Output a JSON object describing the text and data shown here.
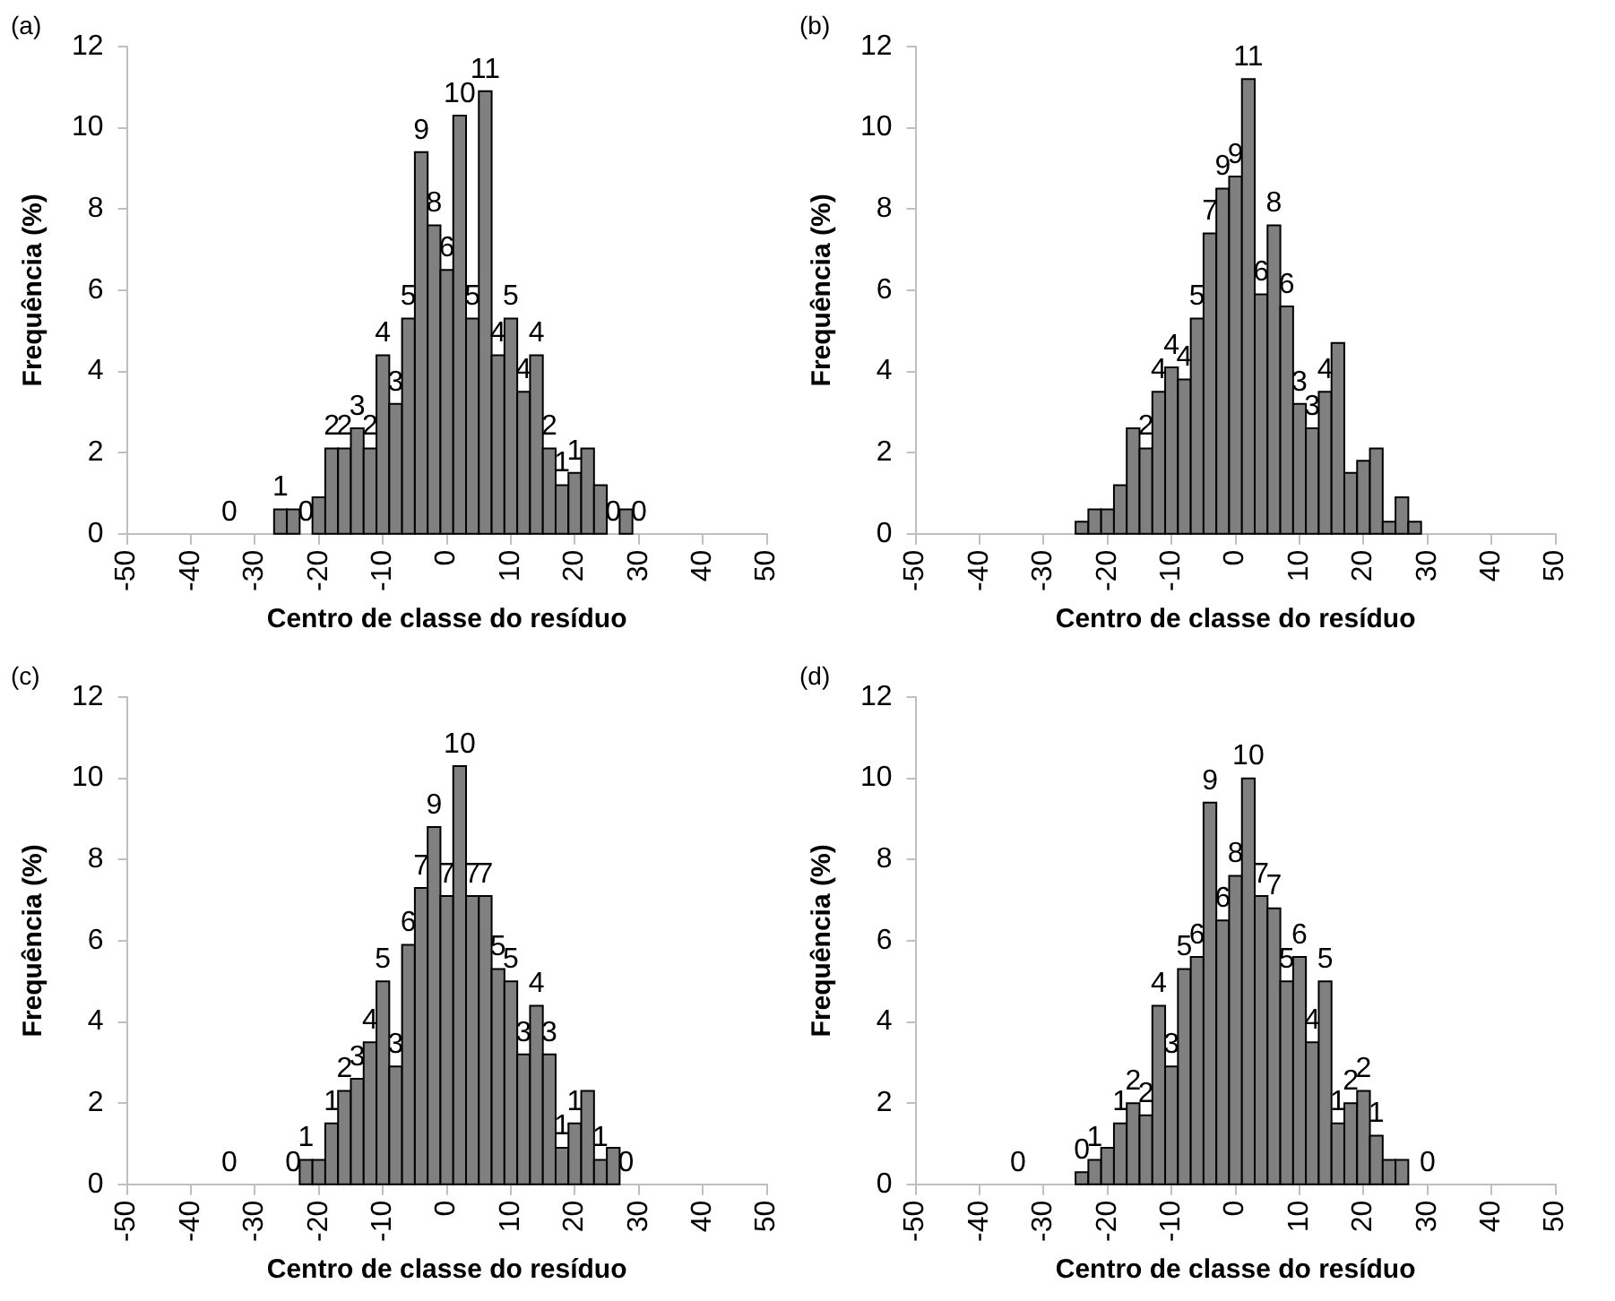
{
  "chart_data": [
    {
      "type": "histogram",
      "title": "(a)",
      "xlabel": "Centro de classe do resíduo",
      "ylabel": "Frequência (%)",
      "color": "#808080",
      "grid": false,
      "xlim": [
        -50,
        50
      ],
      "xticks": [
        -50,
        -40,
        -30,
        -20,
        -10,
        0,
        10,
        20,
        30,
        40,
        50
      ],
      "ylim": [
        0,
        12
      ],
      "yticks": [
        0,
        2,
        4,
        6,
        8,
        10,
        12
      ],
      "bins": [
        -35,
        -33,
        -31,
        -29,
        -27,
        -25,
        -23,
        -21,
        -19,
        -17,
        -15,
        -13,
        -11,
        -9,
        -7,
        -5,
        -3,
        -1,
        1,
        3,
        5,
        7,
        9,
        11,
        13,
        15,
        17,
        19,
        21,
        23,
        25,
        27,
        29,
        31
      ],
      "values": [
        0,
        0,
        0,
        0,
        0.6,
        0.6,
        0,
        0.9,
        2.1,
        2.1,
        2.6,
        2.1,
        4.4,
        3.2,
        5.3,
        9.4,
        7.6,
        6.5,
        10.3,
        5.3,
        10.9,
        4.4,
        5.3,
        3.5,
        4.4,
        2.1,
        1.2,
        1.5,
        2.1,
        1.2,
        0,
        0.6,
        0
      ],
      "value_labels": [
        "0",
        null,
        null,
        null,
        "1",
        null,
        "0",
        null,
        "2",
        "2",
        "3",
        "2",
        "4",
        "3",
        "5",
        "9",
        "8",
        "6",
        "10",
        "5",
        "11",
        "4",
        "5",
        "4",
        "4",
        "2",
        "1",
        "1",
        null,
        null,
        "0",
        null,
        "0"
      ]
    },
    {
      "type": "histogram",
      "title": "(b)",
      "xlabel": "Centro de classe do resíduo",
      "ylabel": "Frequência (%)",
      "color": "#808080",
      "grid": false,
      "xlim": [
        -50,
        50
      ],
      "xticks": [
        -50,
        -40,
        -30,
        -20,
        -10,
        0,
        10,
        20,
        30,
        40,
        50
      ],
      "ylim": [
        0,
        12
      ],
      "yticks": [
        0,
        2,
        4,
        6,
        8,
        10,
        12
      ],
      "bins": [
        -35,
        -33,
        -31,
        -29,
        -27,
        -25,
        -23,
        -21,
        -19,
        -17,
        -15,
        -13,
        -11,
        -9,
        -7,
        -5,
        -3,
        -1,
        1,
        3,
        5,
        7,
        9,
        11,
        13,
        15,
        17,
        19,
        21,
        23,
        25,
        27,
        29,
        31
      ],
      "values": [
        0,
        0,
        0,
        0,
        0,
        0.3,
        0.6,
        0.6,
        1.2,
        2.6,
        2.1,
        3.5,
        4.1,
        3.8,
        5.3,
        7.4,
        8.5,
        8.8,
        11.2,
        5.9,
        7.6,
        5.6,
        3.2,
        2.6,
        3.5,
        4.7,
        1.5,
        1.8,
        2.1,
        0.3,
        0.9,
        0.3,
        0
      ],
      "value_labels": [
        null,
        null,
        null,
        null,
        null,
        null,
        null,
        null,
        null,
        null,
        "2",
        "4",
        "4",
        "4",
        "5",
        "7",
        "9",
        "9",
        "11",
        "6",
        "8",
        "6",
        "3",
        "3",
        "4",
        null,
        null,
        null,
        null,
        null,
        null,
        null,
        null
      ]
    },
    {
      "type": "histogram",
      "title": "(c)",
      "xlabel": "Centro de classe do resíduo",
      "ylabel": "Frequência (%)",
      "color": "#808080",
      "grid": false,
      "xlim": [
        -50,
        50
      ],
      "xticks": [
        -50,
        -40,
        -30,
        -20,
        -10,
        0,
        10,
        20,
        30,
        40,
        50
      ],
      "ylim": [
        0,
        12
      ],
      "yticks": [
        0,
        2,
        4,
        6,
        8,
        10,
        12
      ],
      "bins": [
        -35,
        -33,
        -31,
        -29,
        -27,
        -25,
        -23,
        -21,
        -19,
        -17,
        -15,
        -13,
        -11,
        -9,
        -7,
        -5,
        -3,
        -1,
        1,
        3,
        5,
        7,
        9,
        11,
        13,
        15,
        17,
        19,
        21,
        23,
        25,
        27,
        29,
        31
      ],
      "values": [
        0,
        0,
        0,
        0,
        0,
        0,
        0.6,
        0.6,
        1.5,
        2.3,
        2.6,
        3.5,
        5.0,
        2.9,
        5.9,
        7.3,
        8.8,
        7.1,
        10.3,
        7.1,
        7.1,
        5.3,
        5.0,
        3.2,
        4.4,
        3.2,
        0.9,
        1.5,
        2.3,
        0.6,
        0.9,
        0,
        0
      ],
      "value_labels": [
        "0",
        null,
        null,
        null,
        null,
        "0",
        "1",
        null,
        "1",
        "2",
        "3",
        "4",
        "5",
        "3",
        "6",
        "7",
        "9",
        "7",
        "10",
        "7",
        "7",
        "5",
        "5",
        "3",
        "4",
        "3",
        "1",
        "1",
        null,
        "1",
        null,
        "0",
        null
      ]
    },
    {
      "type": "histogram",
      "title": "(d)",
      "xlabel": "Centro de classe do resíduo",
      "ylabel": "Frequência (%)",
      "color": "#808080",
      "grid": false,
      "xlim": [
        -50,
        50
      ],
      "xticks": [
        -50,
        -40,
        -30,
        -20,
        -10,
        0,
        10,
        20,
        30,
        40,
        50
      ],
      "ylim": [
        0,
        12
      ],
      "yticks": [
        0,
        2,
        4,
        6,
        8,
        10,
        12
      ],
      "bins": [
        -35,
        -33,
        -31,
        -29,
        -27,
        -25,
        -23,
        -21,
        -19,
        -17,
        -15,
        -13,
        -11,
        -9,
        -7,
        -5,
        -3,
        -1,
        1,
        3,
        5,
        7,
        9,
        11,
        13,
        15,
        17,
        19,
        21,
        23,
        25,
        27,
        29,
        31
      ],
      "values": [
        0,
        0,
        0,
        0,
        0,
        0.3,
        0.6,
        0.9,
        1.5,
        2.0,
        1.7,
        4.4,
        2.9,
        5.3,
        5.6,
        9.4,
        6.5,
        7.6,
        10.0,
        7.1,
        6.8,
        5.0,
        5.6,
        3.5,
        5.0,
        1.5,
        2.0,
        2.3,
        1.2,
        0.6,
        0.6,
        0,
        0
      ],
      "value_labels": [
        "0",
        null,
        null,
        null,
        null,
        "0",
        "1",
        null,
        "1",
        "2",
        "2",
        "4",
        "3",
        "5",
        "6",
        "9",
        "6",
        "8",
        "10",
        "7",
        "7",
        "5",
        "6",
        "4",
        "5",
        "1",
        "2",
        "2",
        "1",
        null,
        null,
        null,
        "0"
      ]
    }
  ]
}
